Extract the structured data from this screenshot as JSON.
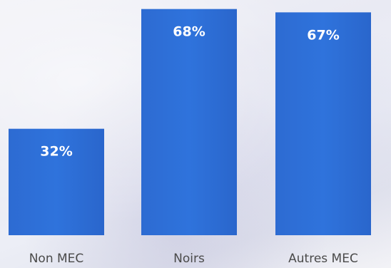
{
  "chart_data": {
    "type": "bar",
    "categories": [
      "Non MEC",
      "Noirs",
      "Autres MEC"
    ],
    "values": [
      32,
      68,
      67
    ],
    "value_suffix": "%",
    "title": "",
    "xlabel": "",
    "ylabel": "",
    "ylim": [
      0,
      69
    ],
    "grid": false,
    "legend": "none",
    "bar_color": "#2e6fd6",
    "bar_color_dark": "#2361c2"
  }
}
